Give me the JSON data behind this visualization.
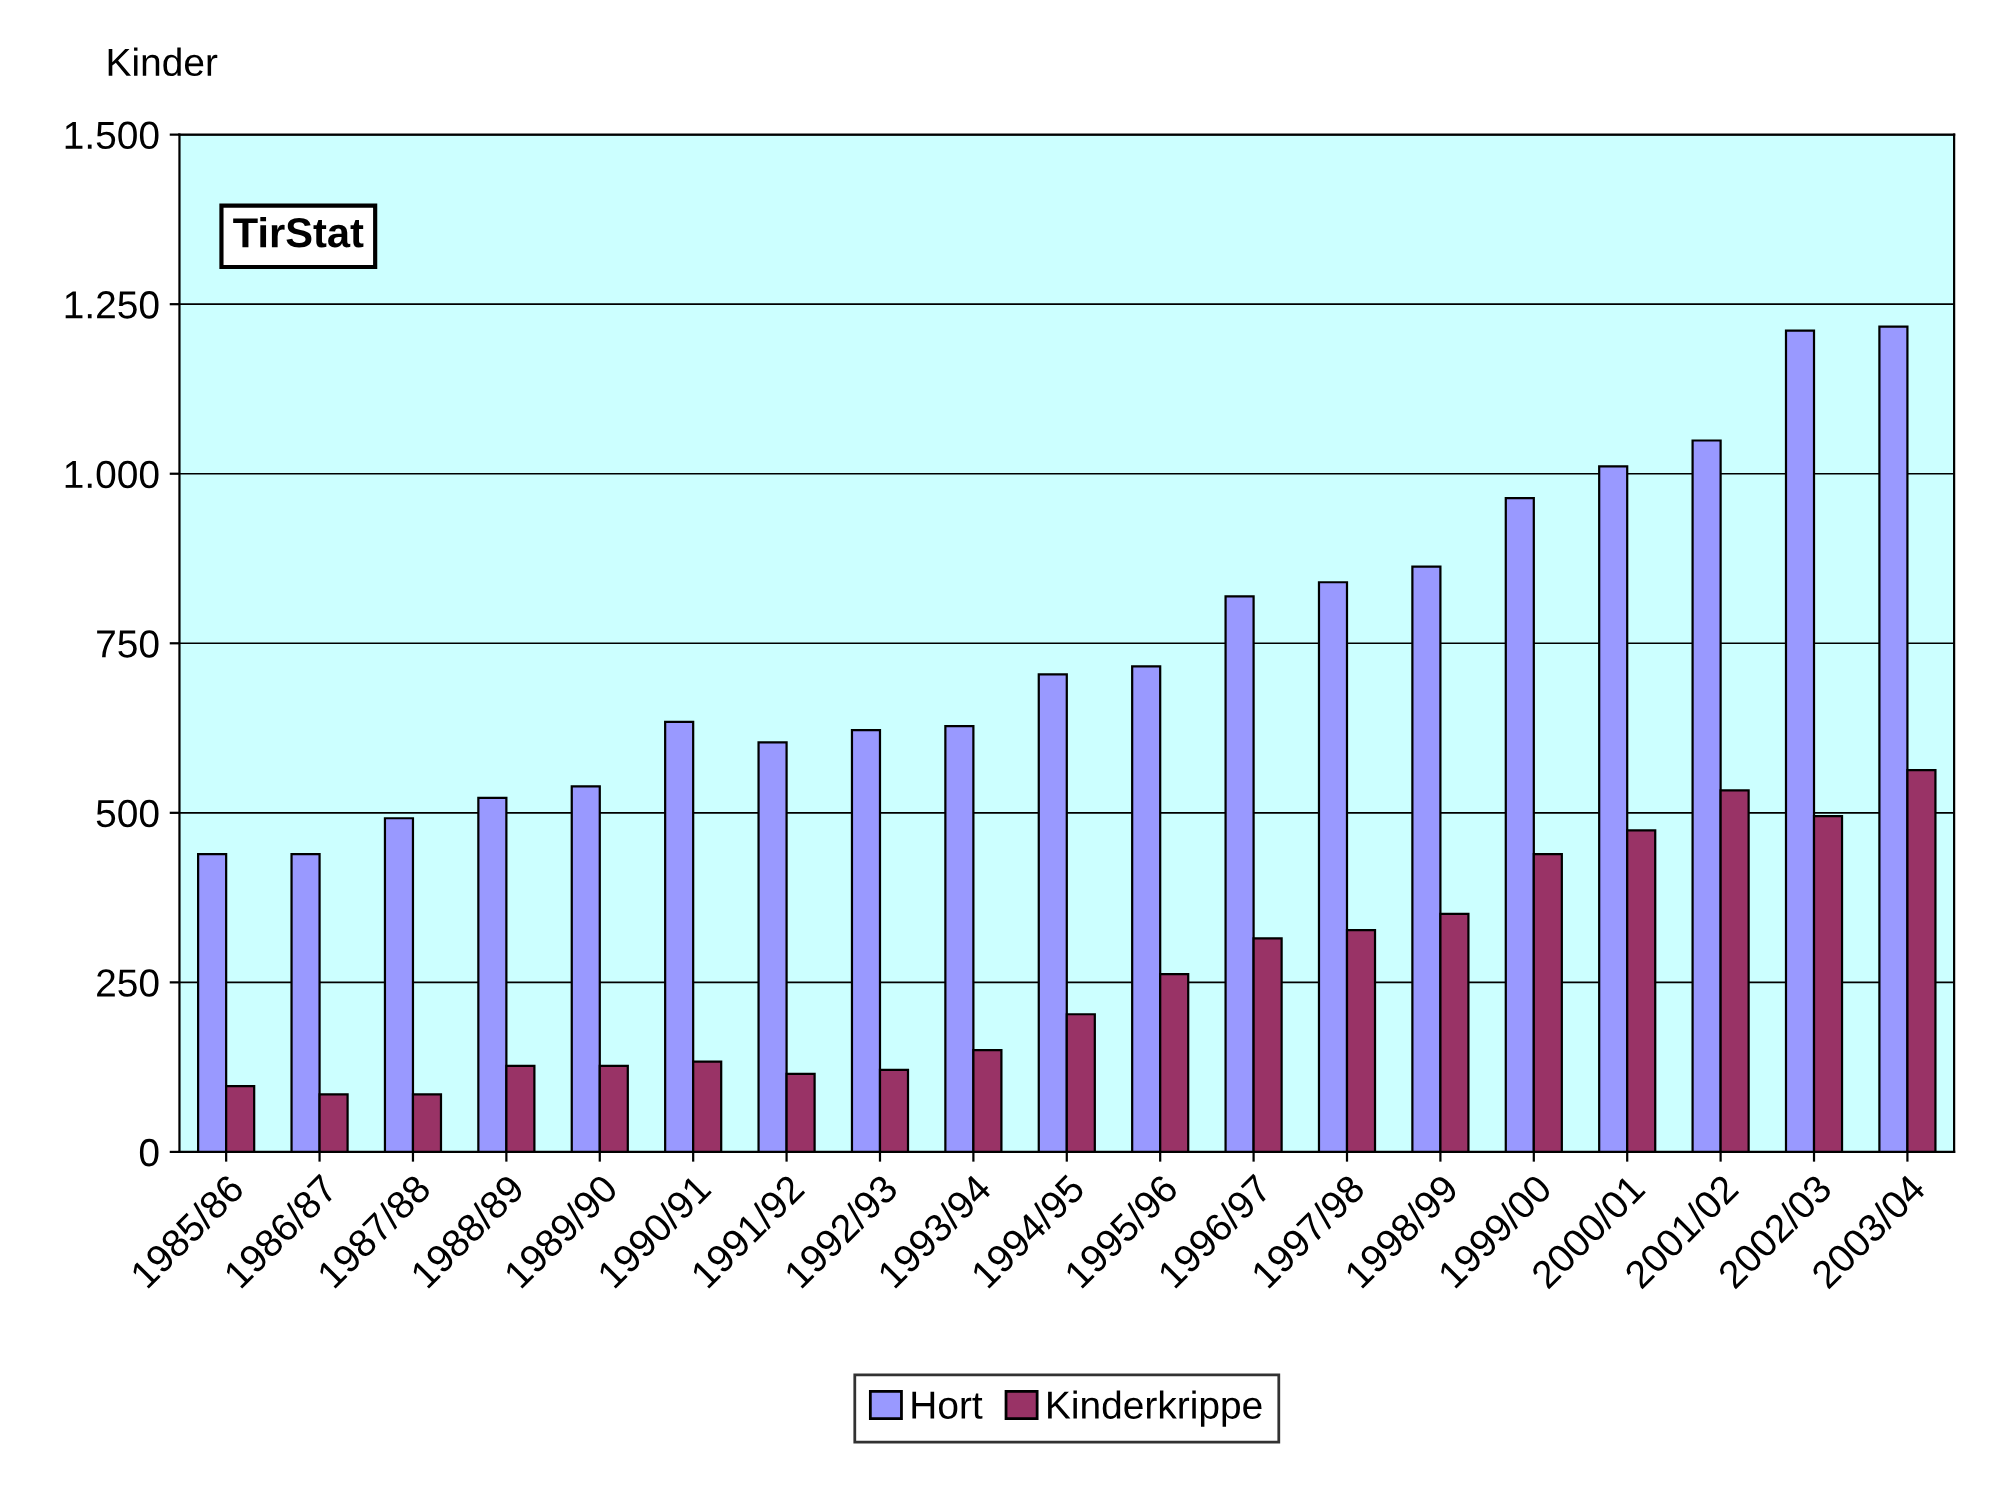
{
  "chart_data": {
    "type": "bar",
    "ylabel": "Kinder",
    "annotations": [
      "TirStat"
    ],
    "categories": [
      "1985/86",
      "1986/87",
      "1987/88",
      "1988/89",
      "1989/90",
      "1990/91",
      "1991/92",
      "1992/93",
      "1993/94",
      "1994/95",
      "1995/96",
      "1996/97",
      "1997/98",
      "1998/99",
      "1999/00",
      "2000/01",
      "2001/02",
      "2002/03",
      "2003/04"
    ],
    "series": [
      {
        "name": "Hort",
        "color": "#9999ff",
        "values": [
          439,
          439,
          492,
          522,
          539,
          634,
          604,
          622,
          628,
          704,
          716,
          819,
          840,
          863,
          964,
          1011,
          1049,
          1211,
          1217
        ]
      },
      {
        "name": "Kinderkrippe",
        "color": "#993366",
        "values": [
          97,
          85,
          85,
          127,
          127,
          133,
          115,
          121,
          150,
          203,
          262,
          315,
          327,
          351,
          439,
          474,
          533,
          495,
          563
        ]
      }
    ],
    "ylim": [
      0,
      1500
    ],
    "yticks": [
      0,
      {
        "value": 250,
        "label": "250"
      },
      {
        "value": 500,
        "label": "500"
      },
      {
        "value": 750,
        "label": "750"
      },
      {
        "value": 1000,
        "label": "1.000"
      },
      {
        "value": 1250,
        "label": "1.250"
      },
      {
        "value": 1500,
        "label": "1.500"
      }
    ],
    "grid": "y",
    "legend": "bottom"
  }
}
